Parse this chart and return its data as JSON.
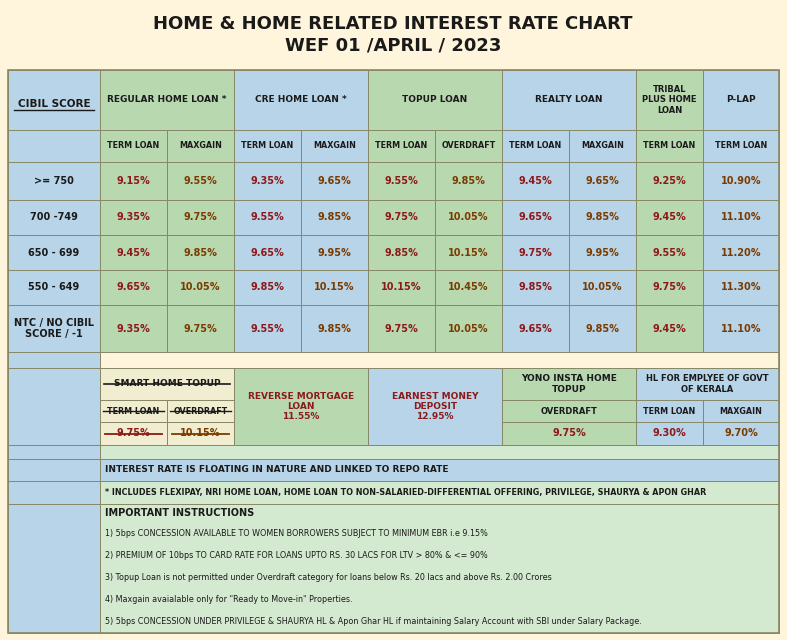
{
  "title_line1": "HOME & HOME RELATED INTEREST RATE CHART",
  "title_line2": "WEF 01 /APRIL / 2023",
  "bg_cream": "#FFF5DC",
  "bg_lightblue": "#B8D4E8",
  "bg_green": "#B8D8B0",
  "bg_lightgreen": "#D4EAD0",
  "bg_beige": "#F0EDD0",
  "text_dark": "#1a1a1a",
  "text_red": "#8B1A1A",
  "text_brown": "#7B3B00",
  "border_color": "#888866",
  "rows": [
    [
      ">= 750",
      "9.15%",
      "9.55%",
      "9.35%",
      "9.65%",
      "9.55%",
      "9.85%",
      "9.45%",
      "9.65%",
      "9.25%",
      "10.90%"
    ],
    [
      "700 -749",
      "9.35%",
      "9.75%",
      "9.55%",
      "9.85%",
      "9.75%",
      "10.05%",
      "9.65%",
      "9.85%",
      "9.45%",
      "11.10%"
    ],
    [
      "650 - 699",
      "9.45%",
      "9.85%",
      "9.65%",
      "9.95%",
      "9.85%",
      "10.15%",
      "9.75%",
      "9.95%",
      "9.55%",
      "11.20%"
    ],
    [
      "550 - 649",
      "9.65%",
      "10.05%",
      "9.85%",
      "10.15%",
      "10.15%",
      "10.45%",
      "9.85%",
      "10.05%",
      "9.75%",
      "11.30%"
    ],
    [
      "NTC / NO CIBIL\nSCORE / -1",
      "9.35%",
      "9.75%",
      "9.55%",
      "9.85%",
      "9.75%",
      "10.05%",
      "9.65%",
      "9.85%",
      "9.45%",
      "11.10%"
    ]
  ],
  "footer_note1": "INTEREST RATE IS FLOATING IN NATURE AND LINKED TO REPO RATE",
  "footer_note2": "* INCLUDES FLEXIPAY, NRI HOME LOAN, HOME LOAN TO NON-SALARIED-DIFFERENTIAL OFFERING, PRIVILEGE, SHAURYA & APON GHAR",
  "instructions_title": "IMPORTANT INSTRUCTIONS",
  "instructions": [
    "1) 5bps CONCESSION AVAILABLE TO WOMEN BORROWERS SUBJECT TO MINIMUM EBR i.e 9.15%",
    "2) PREMIUM OF 10bps TO CARD RATE FOR LOANS UPTO RS. 30 LACS FOR LTV > 80% & <= 90%",
    "3) Topup Loan is not permitted under Overdraft category for loans below Rs. 20 lacs and above Rs. 2.00 Crores",
    "4) Maxgain avaialable only for \"Ready to Move-in\" Properties.",
    "5) 5bps CONCESSION UNDER PRIVILEGE & SHAURYA HL & Apon Ghar HL if maintaining Salary Account with SBI under Salary Package."
  ]
}
